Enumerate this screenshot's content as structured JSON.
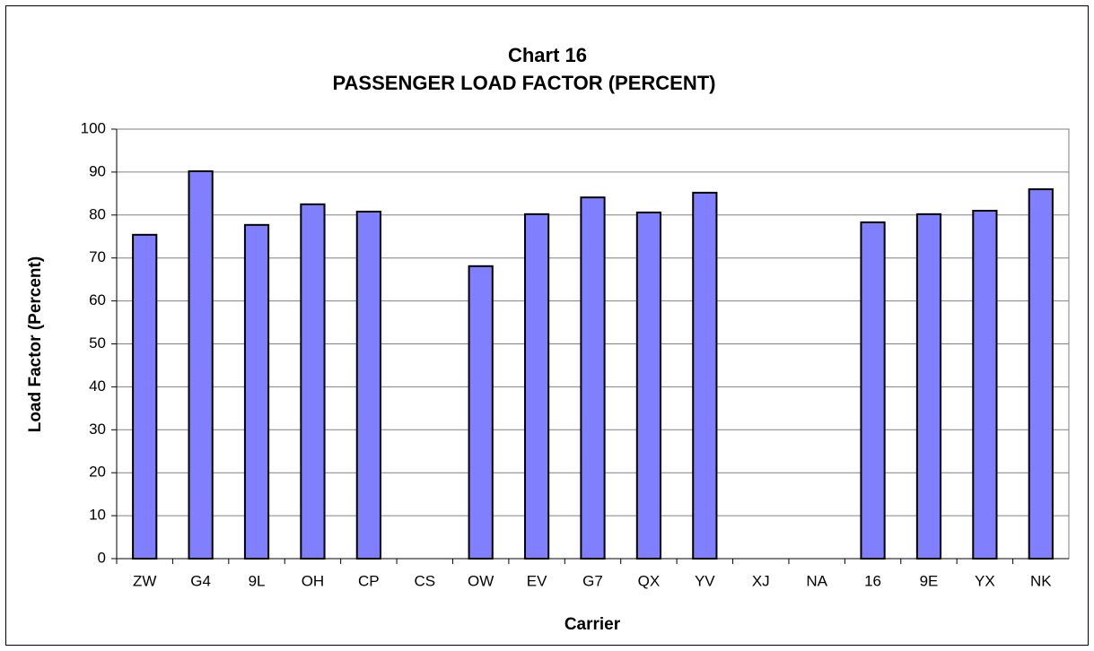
{
  "chart_data": {
    "type": "bar",
    "title": "Chart 16",
    "subtitle": "PASSENGER LOAD FACTOR (PERCENT)",
    "x_label": "Carrier",
    "y_label": "Load Factor (Percent)",
    "categories": [
      "ZW",
      "G4",
      "9L",
      "OH",
      "CP",
      "CS",
      "OW",
      "EV",
      "G7",
      "QX",
      "YV",
      "XJ",
      "NA",
      "16",
      "9E",
      "YX",
      "NK"
    ],
    "values": [
      75.4,
      90.2,
      77.7,
      82.5,
      80.8,
      null,
      68.1,
      80.2,
      84.1,
      80.6,
      85.2,
      null,
      null,
      78.3,
      80.2,
      81.0,
      86.0
    ],
    "color": "#8080ff",
    "ylim": [
      0,
      100
    ],
    "yticks": [
      0,
      10,
      20,
      30,
      40,
      50,
      60,
      70,
      80,
      90,
      100
    ],
    "grid": true
  }
}
